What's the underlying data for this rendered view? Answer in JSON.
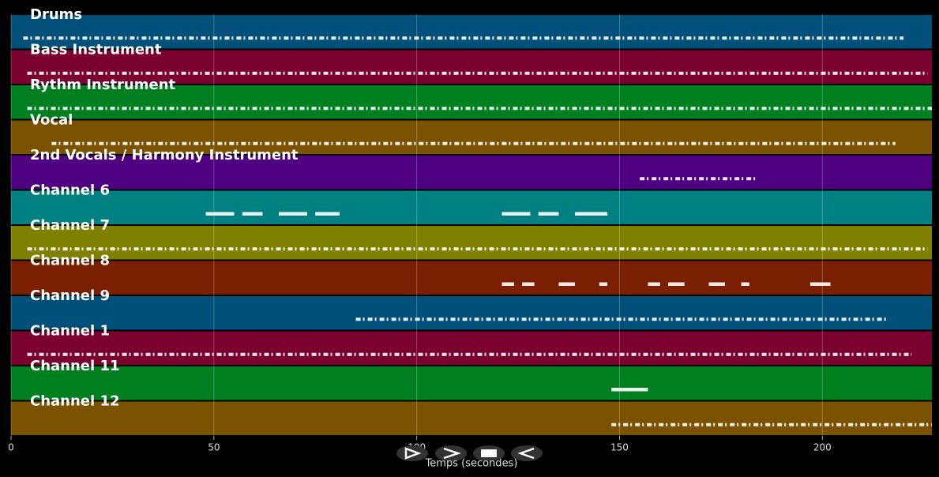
{
  "chart_data": {
    "type": "timeline",
    "xlabel": "Temps (secondes)",
    "xlim": [
      0,
      227
    ],
    "xticks": [
      0,
      50,
      100,
      150,
      200
    ],
    "grid": true,
    "tracks": [
      {
        "name": "Drums",
        "color": "#00507a",
        "segments": [
          [
            3,
            220
          ]
        ]
      },
      {
        "name": "Bass Instrument",
        "color": "#7a0030",
        "segments": [
          [
            4,
            226
          ]
        ]
      },
      {
        "name": "Rythm Instrument",
        "color": "#007f20",
        "segments": [
          [
            4,
            227
          ]
        ]
      },
      {
        "name": "Vocal",
        "color": "#7a5200",
        "segments": [
          [
            10,
            218
          ]
        ]
      },
      {
        "name": "2nd Vocals / Harmony Instrument",
        "color": "#4f0080",
        "segments": [
          [
            155,
            184
          ]
        ]
      },
      {
        "name": "Channel 6",
        "color": "#008080",
        "segments": [
          [
            48,
            55
          ],
          [
            57,
            62
          ],
          [
            66,
            73
          ],
          [
            75,
            81
          ],
          [
            121,
            128
          ],
          [
            130,
            135
          ],
          [
            139,
            147
          ]
        ]
      },
      {
        "name": "Channel 7",
        "color": "#7f7f00",
        "segments": [
          [
            4,
            226
          ]
        ]
      },
      {
        "name": "Channel 8",
        "color": "#7a2000",
        "segments": [
          [
            121,
            124
          ],
          [
            126,
            129
          ],
          [
            135,
            139
          ],
          [
            145,
            147
          ],
          [
            157,
            160
          ],
          [
            162,
            166
          ],
          [
            172,
            176
          ],
          [
            180,
            182
          ],
          [
            197,
            202
          ]
        ]
      },
      {
        "name": "Channel 9",
        "color": "#00507a",
        "segments": [
          [
            85,
            216
          ]
        ]
      },
      {
        "name": "Channel 1",
        "color": "#7a0030",
        "segments": [
          [
            4,
            222
          ]
        ]
      },
      {
        "name": "Channel 11",
        "color": "#007f20",
        "segments": [
          [
            148,
            157
          ]
        ]
      },
      {
        "name": "Channel 12",
        "color": "#7a5200",
        "segments": [
          [
            148,
            227
          ]
        ]
      }
    ]
  }
}
